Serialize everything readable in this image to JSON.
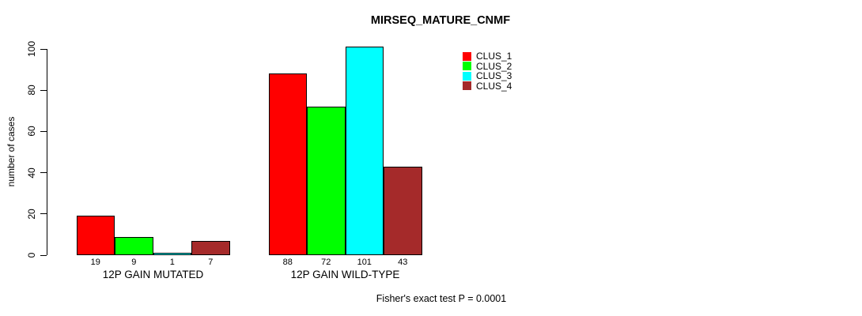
{
  "chart_data": {
    "type": "bar",
    "grouped": true,
    "title": "MIRSEQ_MATURE_CNMF",
    "xlabel": "",
    "ylabel": "number of cases",
    "ylim": [
      0,
      100
    ],
    "yticks": [
      0,
      20,
      40,
      60,
      80,
      100
    ],
    "grid": false,
    "legend_position": "top-right",
    "categories": [
      "12P GAIN MUTATED",
      "12P GAIN WILD-TYPE"
    ],
    "series": [
      {
        "name": "CLUS_1",
        "color": "#FF0000",
        "values": [
          19,
          88
        ]
      },
      {
        "name": "CLUS_2",
        "color": "#00FF00",
        "values": [
          9,
          72
        ]
      },
      {
        "name": "CLUS_3",
        "color": "#00FFFF",
        "values": [
          1,
          101
        ]
      },
      {
        "name": "CLUS_4",
        "color": "#A52A2A",
        "values": [
          7,
          43
        ]
      }
    ],
    "bar_value_labels": [
      [
        19,
        9,
        1,
        7
      ],
      [
        88,
        72,
        101,
        43
      ]
    ],
    "annotation": "Fisher's exact test P = 0.0001"
  }
}
